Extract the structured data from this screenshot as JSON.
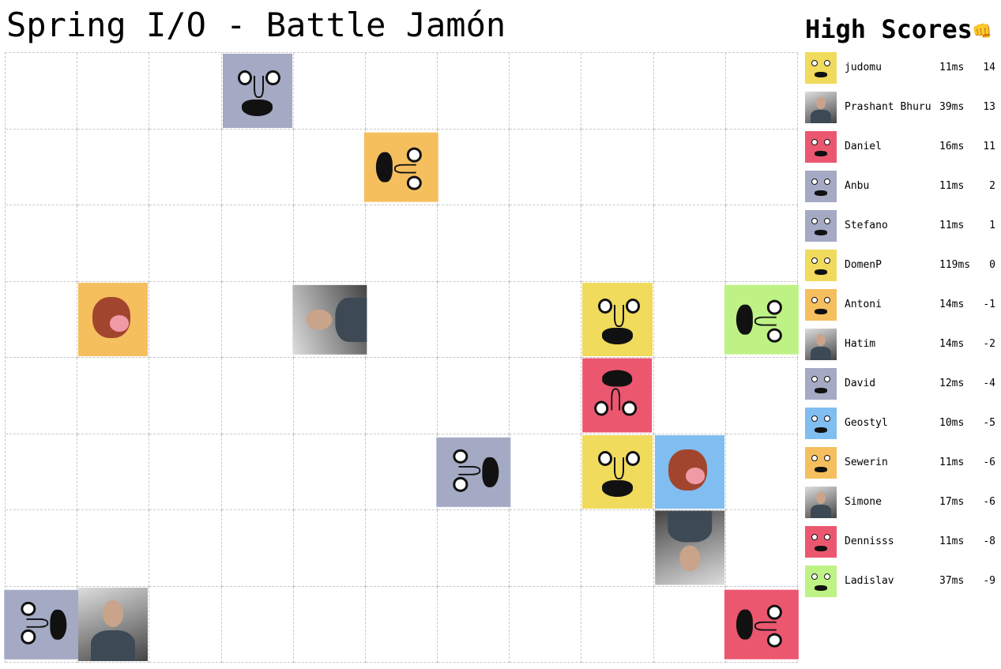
{
  "title": "Spring I/O - Battle Jamón",
  "colors": {
    "yellow": "#f0db5c",
    "pink": "#ec5770",
    "lavender": "#a4a9c4",
    "orange": "#f6bf5e",
    "blue": "#80bdf0",
    "green": "#bef285"
  },
  "board": {
    "columns": 11,
    "rows": 8,
    "pieces": [
      {
        "col": 3,
        "row": 0,
        "kind": "face",
        "color": "lavender"
      },
      {
        "col": 5,
        "row": 1,
        "kind": "face",
        "color": "orange"
      },
      {
        "col": 1,
        "row": 3,
        "kind": "ham",
        "color": "orange"
      },
      {
        "col": 4,
        "row": 3,
        "kind": "photo",
        "color": "photo"
      },
      {
        "col": 8,
        "row": 3,
        "kind": "face",
        "color": "yellow"
      },
      {
        "col": 10,
        "row": 3,
        "kind": "face",
        "color": "green"
      },
      {
        "col": 8,
        "row": 4,
        "kind": "face",
        "color": "pink"
      },
      {
        "col": 6,
        "row": 5,
        "kind": "face",
        "color": "lavender"
      },
      {
        "col": 8,
        "row": 5,
        "kind": "face",
        "color": "yellow"
      },
      {
        "col": 9,
        "row": 5,
        "kind": "ham",
        "color": "blue"
      },
      {
        "col": 9,
        "row": 6,
        "kind": "photo",
        "color": "photo"
      },
      {
        "col": 0,
        "row": 7,
        "kind": "face",
        "color": "lavender"
      },
      {
        "col": 1,
        "row": 7,
        "kind": "photo",
        "color": "photo"
      },
      {
        "col": 10,
        "row": 7,
        "kind": "face",
        "color": "pink"
      }
    ]
  },
  "high_scores": {
    "title": "High Scores",
    "icon": "fist-emoji",
    "icon_glyph": "👊",
    "entries": [
      {
        "name": "judomu",
        "time": "11ms",
        "score": "14",
        "avatar": "yellow"
      },
      {
        "name": "Prashant Bhuru",
        "time": "39ms",
        "score": "13",
        "avatar": "photo"
      },
      {
        "name": "Daniel",
        "time": "16ms",
        "score": "11",
        "avatar": "pink"
      },
      {
        "name": "Anbu",
        "time": "11ms",
        "score": "2",
        "avatar": "lavender"
      },
      {
        "name": "Stefano",
        "time": "11ms",
        "score": "1",
        "avatar": "lavender"
      },
      {
        "name": "DomenP",
        "time": "119ms",
        "score": "0",
        "avatar": "yellow"
      },
      {
        "name": "Antoni",
        "time": "14ms",
        "score": "-1",
        "avatar": "orange"
      },
      {
        "name": "Hatim",
        "time": "14ms",
        "score": "-2",
        "avatar": "photo"
      },
      {
        "name": "David",
        "time": "12ms",
        "score": "-4",
        "avatar": "lavender"
      },
      {
        "name": "Geostyl",
        "time": "10ms",
        "score": "-5",
        "avatar": "blue"
      },
      {
        "name": "Sewerin",
        "time": "11ms",
        "score": "-6",
        "avatar": "orange"
      },
      {
        "name": "Simone",
        "time": "17ms",
        "score": "-6",
        "avatar": "photo"
      },
      {
        "name": "Dennisss",
        "time": "11ms",
        "score": "-8",
        "avatar": "pink"
      },
      {
        "name": "Ladislav",
        "time": "37ms",
        "score": "-9",
        "avatar": "green"
      }
    ]
  }
}
